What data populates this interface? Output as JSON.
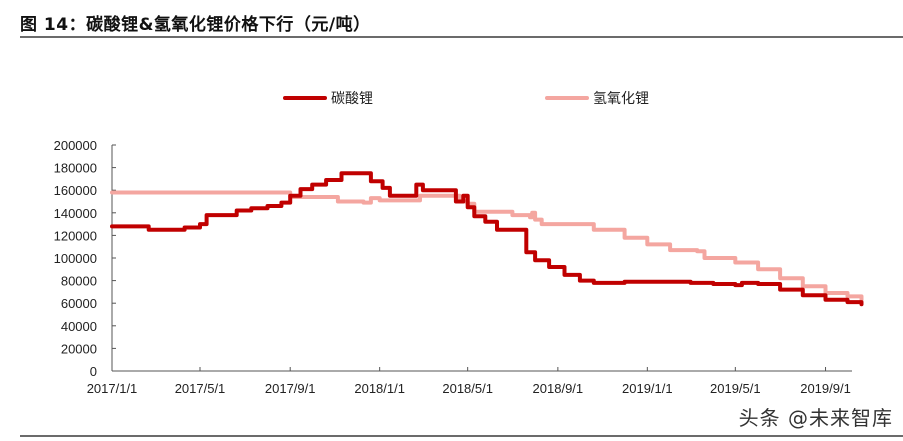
{
  "header": {
    "title": "图 14：碳酸锂&氢氧化锂价格下行（元/吨）"
  },
  "legend": [
    {
      "label": "碳酸锂",
      "color": "#c00000"
    },
    {
      "label": "氢氧化锂",
      "color": "#f4a6a0"
    }
  ],
  "watermark": "头条 @未来智库",
  "chart_data": {
    "type": "line",
    "title": "图 14：碳酸锂&氢氧化锂价格下行（元/吨）",
    "xlabel": "",
    "ylabel": "",
    "unit": "元/吨",
    "ylim": [
      0,
      200000
    ],
    "yticks": [
      0,
      20000,
      40000,
      60000,
      80000,
      100000,
      120000,
      140000,
      160000,
      180000,
      200000
    ],
    "xticks": [
      "2017/1/1",
      "2017/5/1",
      "2017/9/1",
      "2018/1/1",
      "2018/5/1",
      "2018/9/1",
      "2019/1/1",
      "2019/5/1",
      "2019/9/1"
    ],
    "grid": false,
    "legend_position": "top",
    "series": [
      {
        "name": "碳酸锂",
        "color": "#c00000",
        "points": [
          [
            "2017/1/1",
            128000
          ],
          [
            "2017/2/15",
            128000
          ],
          [
            "2017/2/20",
            125000
          ],
          [
            "2017/4/1",
            125000
          ],
          [
            "2017/4/10",
            127000
          ],
          [
            "2017/5/1",
            130000
          ],
          [
            "2017/5/10",
            138000
          ],
          [
            "2017/6/10",
            138000
          ],
          [
            "2017/6/20",
            142000
          ],
          [
            "2017/7/10",
            144000
          ],
          [
            "2017/8/1",
            146000
          ],
          [
            "2017/8/20",
            149000
          ],
          [
            "2017/9/1",
            155000
          ],
          [
            "2017/9/15",
            161000
          ],
          [
            "2017/10/1",
            165000
          ],
          [
            "2017/10/20",
            169000
          ],
          [
            "2017/11/10",
            175000
          ],
          [
            "2017/12/10",
            175000
          ],
          [
            "2017/12/20",
            168000
          ],
          [
            "2018/1/5",
            162000
          ],
          [
            "2018/1/15",
            155000
          ],
          [
            "2018/2/15",
            155000
          ],
          [
            "2018/2/20",
            165000
          ],
          [
            "2018/3/1",
            160000
          ],
          [
            "2018/4/10",
            160000
          ],
          [
            "2018/4/15",
            150000
          ],
          [
            "2018/4/25",
            155000
          ],
          [
            "2018/5/1",
            145000
          ],
          [
            "2018/5/10",
            137000
          ],
          [
            "2018/5/25",
            132000
          ],
          [
            "2018/6/10",
            125000
          ],
          [
            "2018/7/10",
            125000
          ],
          [
            "2018/7/20",
            105000
          ],
          [
            "2018/8/1",
            98000
          ],
          [
            "2018/8/20",
            92000
          ],
          [
            "2018/9/10",
            85000
          ],
          [
            "2018/10/1",
            80000
          ],
          [
            "2018/10/20",
            78000
          ],
          [
            "2018/12/1",
            79000
          ],
          [
            "2019/2/1",
            79000
          ],
          [
            "2019/3/1",
            78000
          ],
          [
            "2019/4/1",
            77000
          ],
          [
            "2019/5/1",
            76000
          ],
          [
            "2019/5/10",
            78000
          ],
          [
            "2019/6/1",
            77000
          ],
          [
            "2019/7/1",
            72000
          ],
          [
            "2019/8/1",
            67000
          ],
          [
            "2019/9/1",
            63000
          ],
          [
            "2019/10/1",
            61000
          ],
          [
            "2019/10/20",
            59000
          ]
        ]
      },
      {
        "name": "氢氧化锂",
        "color": "#f4a6a0",
        "points": [
          [
            "2017/1/1",
            158000
          ],
          [
            "2017/8/20",
            158000
          ],
          [
            "2017/9/1",
            154000
          ],
          [
            "2017/11/1",
            154000
          ],
          [
            "2017/11/5",
            150000
          ],
          [
            "2017/12/10",
            149000
          ],
          [
            "2017/12/20",
            153000
          ],
          [
            "2018/1/1",
            151000
          ],
          [
            "2018/2/20",
            151000
          ],
          [
            "2018/2/25",
            155000
          ],
          [
            "2018/4/15",
            155000
          ],
          [
            "2018/4/20",
            150000
          ],
          [
            "2018/5/1",
            148000
          ],
          [
            "2018/5/10",
            141000
          ],
          [
            "2018/7/1",
            138000
          ],
          [
            "2018/7/25",
            136000
          ],
          [
            "2018/7/28",
            140000
          ],
          [
            "2018/8/1",
            134000
          ],
          [
            "2018/8/10",
            130000
          ],
          [
            "2018/10/1",
            130000
          ],
          [
            "2018/10/20",
            125000
          ],
          [
            "2018/12/1",
            118000
          ],
          [
            "2019/1/1",
            112000
          ],
          [
            "2019/2/1",
            107000
          ],
          [
            "2019/3/10",
            106000
          ],
          [
            "2019/3/20",
            100000
          ],
          [
            "2019/5/1",
            96000
          ],
          [
            "2019/6/1",
            90000
          ],
          [
            "2019/7/1",
            82000
          ],
          [
            "2019/8/1",
            75000
          ],
          [
            "2019/9/1",
            69000
          ],
          [
            "2019/10/1",
            66000
          ],
          [
            "2019/10/20",
            63000
          ]
        ]
      }
    ]
  }
}
